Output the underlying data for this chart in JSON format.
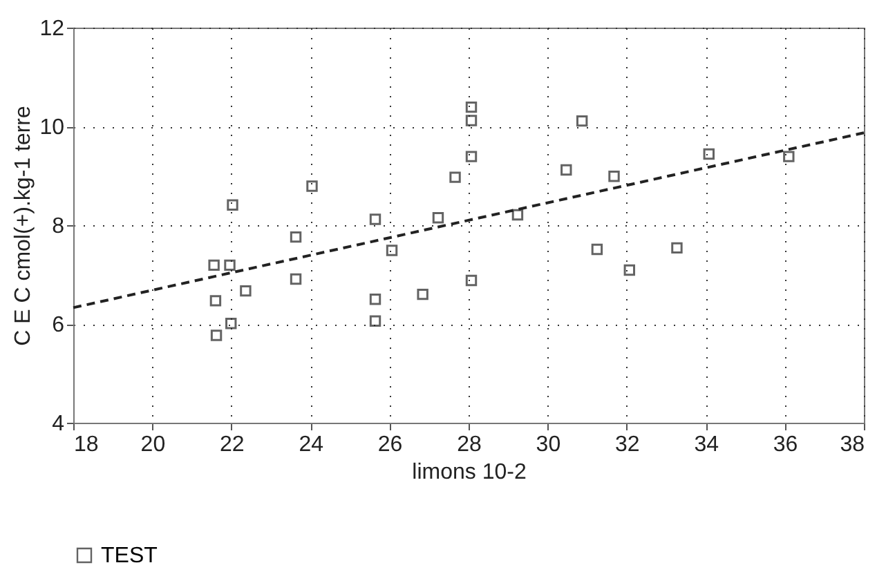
{
  "chart_data": {
    "type": "scatter",
    "xlabel": "limons 10-2",
    "ylabel": "C E C  cmol(+).kg-1 terre",
    "xlim": [
      18,
      38
    ],
    "xticks": [
      18,
      20,
      22,
      24,
      26,
      28,
      30,
      32,
      34,
      36,
      38
    ],
    "ylim": [
      4,
      12
    ],
    "yticks": [
      4,
      6,
      8,
      10,
      12
    ],
    "grid": true,
    "legend": "bottom",
    "series": [
      {
        "name": "TEST",
        "color": "#222222",
        "marker": "square",
        "x": [
          21.56,
          21.96,
          22.03,
          22.36,
          21.6,
          21.99,
          21.62,
          23.63,
          23.63,
          24.04,
          25.64,
          25.64,
          25.64,
          26.06,
          26.84,
          27.23,
          27.66,
          28.07,
          28.07,
          28.07,
          28.07,
          29.24,
          30.47,
          30.87,
          31.25,
          31.68,
          32.07,
          33.27,
          34.08,
          36.1
        ],
        "values": [
          7.19,
          7.19,
          8.41,
          6.67,
          6.47,
          6.01,
          5.77,
          7.76,
          6.91,
          8.79,
          8.12,
          6.5,
          6.06,
          7.49,
          6.6,
          8.15,
          8.97,
          9.39,
          10.12,
          10.39,
          6.88,
          8.21,
          9.12,
          10.11,
          7.51,
          8.99,
          7.09,
          7.54,
          9.44,
          9.39
        ]
      },
      {
        "type": "line",
        "color": "#222222",
        "line_style": "dashed",
        "marker": "none",
        "x": [
          18,
          38
        ],
        "values": [
          6.33,
          9.87
        ]
      }
    ]
  }
}
